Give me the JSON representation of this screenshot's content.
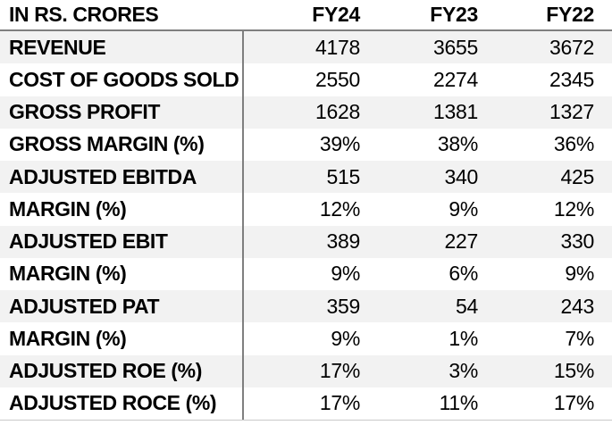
{
  "chart_data": {
    "type": "table",
    "title": "IN RS. CRORES",
    "columns": [
      "FY24",
      "FY23",
      "FY22"
    ],
    "rows": [
      {
        "label": "REVENUE",
        "values": [
          "4178",
          "3655",
          "3672"
        ]
      },
      {
        "label": "COST OF GOODS SOLD",
        "values": [
          "2550",
          "2274",
          "2345"
        ]
      },
      {
        "label": "GROSS PROFIT",
        "values": [
          "1628",
          "1381",
          "1327"
        ]
      },
      {
        "label": "GROSS MARGIN (%)",
        "values": [
          "39%",
          "38%",
          "36%"
        ]
      },
      {
        "label": "ADJUSTED EBITDA",
        "values": [
          "515",
          "340",
          "425"
        ]
      },
      {
        "label": "MARGIN (%)",
        "values": [
          "12%",
          "9%",
          "12%"
        ]
      },
      {
        "label": "ADJUSTED EBIT",
        "values": [
          "389",
          "227",
          "330"
        ]
      },
      {
        "label": "MARGIN (%)",
        "values": [
          "9%",
          "6%",
          "9%"
        ]
      },
      {
        "label": "ADJUSTED PAT",
        "values": [
          "359",
          "54",
          "243"
        ]
      },
      {
        "label": "MARGIN (%)",
        "values": [
          "9%",
          "1%",
          "7%"
        ]
      },
      {
        "label": "ADJUSTED ROE (%)",
        "values": [
          "17%",
          "3%",
          "15%"
        ]
      },
      {
        "label": "ADJUSTED ROCE (%)",
        "values": [
          "17%",
          "11%",
          "17%"
        ]
      }
    ],
    "layout": {
      "striped_rows": true,
      "legend": "none",
      "grid": "header-rule, column-divider, bottom-rule"
    },
    "colors": {
      "text": "#000000",
      "stripe": "#f2f2f2",
      "divider": "#7f7f7f",
      "header_rule": "#7f7f7f",
      "bottom_rule": "#c9c9c9",
      "background": "#ffffff"
    }
  }
}
